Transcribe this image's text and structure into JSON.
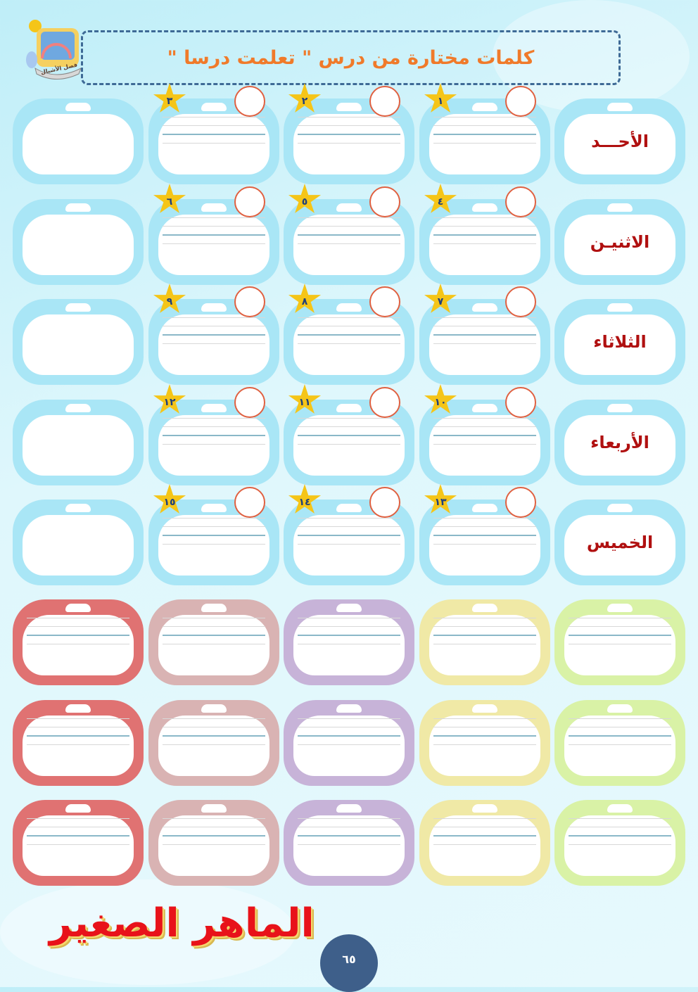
{
  "header": {
    "title": "كلمات مختارة من درس \" تعلمت درسا \"",
    "badge_text": "فصل الأشبال"
  },
  "days": [
    "الأحـــد",
    "الاثنيـن",
    "الثلاثاء",
    "الأربعاء",
    "الخميس"
  ],
  "star_numbers": [
    [
      "٣",
      "٢",
      "١"
    ],
    [
      "٦",
      "٥",
      "٤"
    ],
    [
      "٩",
      "٨",
      "٧"
    ],
    [
      "١٢",
      "١١",
      "١٠"
    ],
    [
      "١٥",
      "١٤",
      "١٣"
    ]
  ],
  "colors": {
    "top_card": "#a9e6f6",
    "title_text": "#f07a2a",
    "day_text": "#b01010",
    "star": "#f5c518",
    "bottom_cards": [
      "#e07272",
      "#d9b3b3",
      "#c7b3d8",
      "#f0e9a6",
      "#d9f2a6"
    ]
  },
  "footer": {
    "logo_text": "الماهر الصغير",
    "page_number": "٦٥"
  }
}
